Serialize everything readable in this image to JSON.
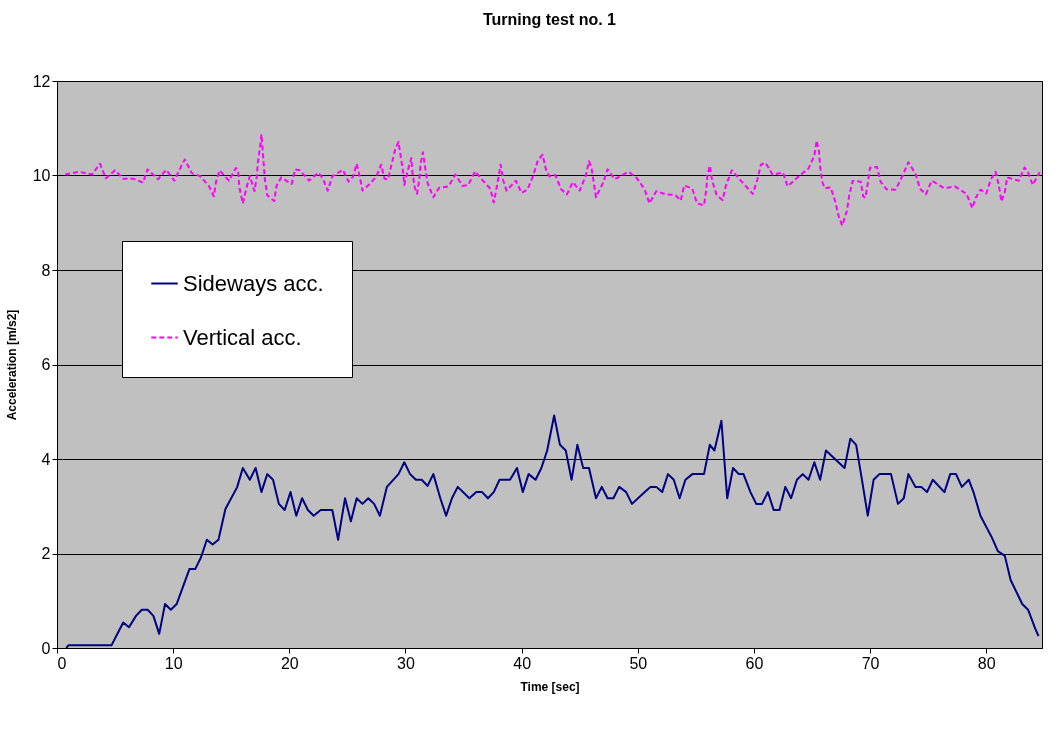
{
  "chart_data": {
    "type": "line",
    "title": "Turning test no. 1",
    "xlabel": "Time [sec]",
    "ylabel": "Acceleration [m/s2]",
    "xlim": [
      0,
      84.8
    ],
    "xticks": [
      0,
      10,
      20,
      30,
      40,
      50,
      60,
      70,
      80
    ],
    "ylim": [
      0,
      12
    ],
    "yticks": [
      0,
      2,
      4,
      6,
      8,
      10,
      12
    ],
    "grid": "y",
    "legend": "left",
    "series": [
      {
        "name": "Sideways acc.",
        "color": "#000080",
        "line_style": "solid",
        "x": [
          0.8,
          1.0,
          4.7,
          5.7,
          6.2,
          6.8,
          7.3,
          7.8,
          8.3,
          8.8,
          9.3,
          9.8,
          10.3,
          11.4,
          11.9,
          12.4,
          12.9,
          13.4,
          13.9,
          14.5,
          15.5,
          16.0,
          16.6,
          17.1,
          17.6,
          18.1,
          18.6,
          19.1,
          19.6,
          20.1,
          20.6,
          21.1,
          21.6,
          22.1,
          22.7,
          23.7,
          24.2,
          24.8,
          25.3,
          25.8,
          26.3,
          26.8,
          27.3,
          27.8,
          28.4,
          29.4,
          29.9,
          30.4,
          30.9,
          31.4,
          31.9,
          32.4,
          33.0,
          33.5,
          34.0,
          34.5,
          35.5,
          36.1,
          36.6,
          37.1,
          37.6,
          38.1,
          39.0,
          39.6,
          40.1,
          40.6,
          41.2,
          41.7,
          42.2,
          42.8,
          43.3,
          43.8,
          44.3,
          44.8,
          45.3,
          45.8,
          46.4,
          46.9,
          47.4,
          47.9,
          48.4,
          49.0,
          49.5,
          50.6,
          51.1,
          51.6,
          52.1,
          52.6,
          53.1,
          53.6,
          54.1,
          54.7,
          55.7,
          56.2,
          56.6,
          57.2,
          57.7,
          58.2,
          58.7,
          59.1,
          59.7,
          60.2,
          60.7,
          61.2,
          61.7,
          62.2,
          62.7,
          63.2,
          63.7,
          64.2,
          64.7,
          65.2,
          65.7,
          66.2,
          67.8,
          68.3,
          68.8,
          69.3,
          69.8,
          70.3,
          70.8,
          71.8,
          72.4,
          72.9,
          73.3,
          73.9,
          74.4,
          74.9,
          75.4,
          76.4,
          76.9,
          77.4,
          77.9,
          78.5,
          78.9,
          79.5,
          80.5,
          81.0,
          81.6,
          82.1,
          83.1,
          83.6,
          84.2,
          84.5
        ],
        "values": [
          0,
          0.06,
          0.06,
          0.54,
          0.44,
          0.68,
          0.81,
          0.81,
          0.68,
          0.3,
          0.93,
          0.81,
          0.93,
          1.67,
          1.67,
          1.92,
          2.29,
          2.19,
          2.29,
          2.94,
          3.4,
          3.81,
          3.56,
          3.81,
          3.3,
          3.68,
          3.56,
          3.05,
          2.92,
          3.3,
          2.8,
          3.17,
          2.92,
          2.8,
          2.92,
          2.92,
          2.29,
          3.17,
          2.68,
          3.17,
          3.05,
          3.17,
          3.05,
          2.8,
          3.41,
          3.68,
          3.93,
          3.68,
          3.56,
          3.56,
          3.43,
          3.68,
          3.17,
          2.8,
          3.17,
          3.41,
          3.17,
          3.3,
          3.3,
          3.17,
          3.3,
          3.56,
          3.56,
          3.81,
          3.3,
          3.68,
          3.56,
          3.81,
          4.18,
          4.92,
          4.3,
          4.18,
          3.56,
          4.3,
          3.81,
          3.81,
          3.17,
          3.41,
          3.17,
          3.17,
          3.41,
          3.3,
          3.05,
          3.3,
          3.41,
          3.41,
          3.3,
          3.68,
          3.56,
          3.17,
          3.56,
          3.68,
          3.68,
          4.3,
          4.18,
          4.81,
          3.17,
          3.81,
          3.68,
          3.68,
          3.3,
          3.05,
          3.05,
          3.3,
          2.92,
          2.92,
          3.41,
          3.17,
          3.56,
          3.68,
          3.56,
          3.93,
          3.56,
          4.18,
          3.81,
          4.43,
          4.3,
          3.56,
          2.8,
          3.56,
          3.68,
          3.68,
          3.05,
          3.17,
          3.68,
          3.41,
          3.41,
          3.3,
          3.56,
          3.3,
          3.68,
          3.68,
          3.41,
          3.56,
          3.3,
          2.8,
          2.33,
          2.05,
          1.95,
          1.44,
          0.93,
          0.81,
          0.42,
          0.25
        ]
      },
      {
        "name": "Vertical acc.",
        "color": "#ff00ff",
        "line_style": "dashed",
        "x": [
          0.7,
          1.9,
          3.0,
          3.7,
          4.2,
          5.0,
          5.7,
          6.6,
          7.4,
          7.8,
          8.7,
          9.4,
          10.1,
          10.6,
          11.0,
          11.6,
          12.3,
          13.1,
          13.5,
          13.7,
          14.0,
          14.8,
          15.4,
          15.6,
          15.7,
          16.0,
          16.3,
          16.6,
          17.0,
          17.2,
          17.3,
          17.5,
          17.6,
          17.7,
          17.8,
          17.9,
          18.1,
          18.7,
          18.9,
          19.3,
          20.2,
          20.5,
          20.9,
          21.7,
          22.5,
          22.9,
          23.3,
          23.7,
          24.6,
          25.1,
          25.5,
          25.8,
          26.1,
          26.3,
          27.0,
          27.5,
          27.9,
          28.2,
          28.5,
          28.8,
          29.1,
          29.4,
          29.6,
          29.8,
          29.9,
          30.2,
          30.5,
          30.6,
          30.8,
          31.0,
          31.2,
          31.3,
          31.5,
          31.7,
          31.9,
          32.4,
          32.9,
          33.7,
          34.3,
          34.9,
          35.4,
          36.0,
          36.6,
          37.3,
          37.6,
          37.8,
          38.2,
          38.4,
          38.7,
          39.5,
          40.0,
          40.5,
          41.0,
          41.4,
          41.8,
          42.1,
          42.4,
          42.9,
          43.4,
          43.9,
          44.4,
          45.0,
          45.5,
          45.8,
          46.0,
          46.2,
          46.4,
          47.0,
          47.4,
          48.0,
          49.2,
          49.9,
          50.6,
          51.0,
          51.6,
          52.4,
          53.2,
          53.7,
          54.0,
          54.7,
          55.1,
          55.7,
          55.9,
          56.0,
          56.2,
          56.4,
          56.8,
          57.3,
          57.6,
          58.1,
          58.8,
          59.5,
          59.9,
          60.3,
          60.6,
          61.0,
          61.6,
          62.5,
          62.9,
          63.7,
          64.7,
          65.2,
          65.4,
          65.6,
          65.7,
          65.9,
          66.1,
          66.6,
          67.0,
          67.3,
          67.6,
          68.0,
          68.2,
          68.5,
          69.2,
          69.4,
          69.6,
          69.8,
          70.0,
          70.6,
          70.9,
          71.4,
          72.2,
          72.8,
          73.3,
          73.9,
          74.3,
          74.8,
          75.3,
          76.4,
          77.3,
          78.3,
          78.8,
          79.1,
          79.5,
          80.0,
          80.4,
          80.8,
          81.1,
          81.3,
          81.6,
          81.8,
          82.8,
          83.3,
          83.6,
          84.0,
          84.6
        ],
        "values": [
          10.02,
          10.08,
          10.02,
          10.25,
          9.94,
          10.11,
          9.93,
          9.93,
          9.85,
          10.13,
          9.92,
          10.12,
          9.89,
          10.15,
          10.34,
          10.05,
          9.99,
          9.77,
          9.56,
          9.88,
          10.11,
          9.89,
          10.16,
          10.06,
          9.75,
          9.41,
          9.73,
          9.99,
          9.67,
          9.98,
          10.3,
          10.63,
          10.87,
          10.55,
          10.23,
          9.91,
          9.58,
          9.46,
          9.78,
          9.96,
          9.82,
          10.13,
          10.11,
          9.89,
          10.06,
          9.93,
          9.68,
          9.98,
          10.12,
          9.87,
          9.98,
          10.25,
          9.93,
          9.68,
          9.84,
          9.98,
          10.23,
          9.93,
          9.92,
          10.23,
          10.54,
          10.71,
          10.39,
          10.07,
          9.8,
          10.11,
          10.37,
          10.06,
          9.75,
          9.61,
          9.94,
          10.25,
          10.49,
          10.16,
          9.84,
          9.54,
          9.74,
          9.77,
          10.02,
          9.78,
          9.8,
          10.09,
          9.91,
          9.72,
          9.43,
          9.68,
          10.23,
          9.91,
          9.68,
          9.89,
          9.63,
          9.7,
          10.0,
          10.32,
          10.44,
          10.12,
          9.98,
          10.01,
          9.71,
          9.6,
          9.86,
          9.68,
          9.98,
          10.3,
          10.18,
          9.87,
          9.54,
          9.84,
          10.13,
          9.92,
          10.08,
          9.95,
          9.7,
          9.41,
          9.67,
          9.6,
          9.59,
          9.47,
          9.79,
          9.72,
          9.41,
          9.37,
          9.7,
          10.01,
          10.21,
          9.89,
          9.58,
          9.48,
          9.8,
          10.11,
          9.91,
          9.72,
          9.61,
          9.92,
          10.23,
          10.27,
          10.02,
          10.06,
          9.77,
          9.95,
          10.15,
          10.42,
          10.74,
          10.52,
          10.18,
          9.85,
          9.73,
          9.75,
          9.45,
          9.13,
          8.94,
          9.25,
          9.57,
          9.89,
          9.87,
          9.56,
          9.53,
          9.84,
          10.17,
          10.18,
          9.87,
          9.71,
          9.7,
          10.0,
          10.28,
          10.04,
          9.72,
          9.6,
          9.89,
          9.73,
          9.77,
          9.61,
          9.31,
          9.53,
          9.7,
          9.62,
          9.92,
          10.08,
          9.77,
          9.45,
          9.65,
          9.96,
          9.89,
          10.17,
          10.06,
          9.8,
          10.07
        ]
      }
    ]
  }
}
